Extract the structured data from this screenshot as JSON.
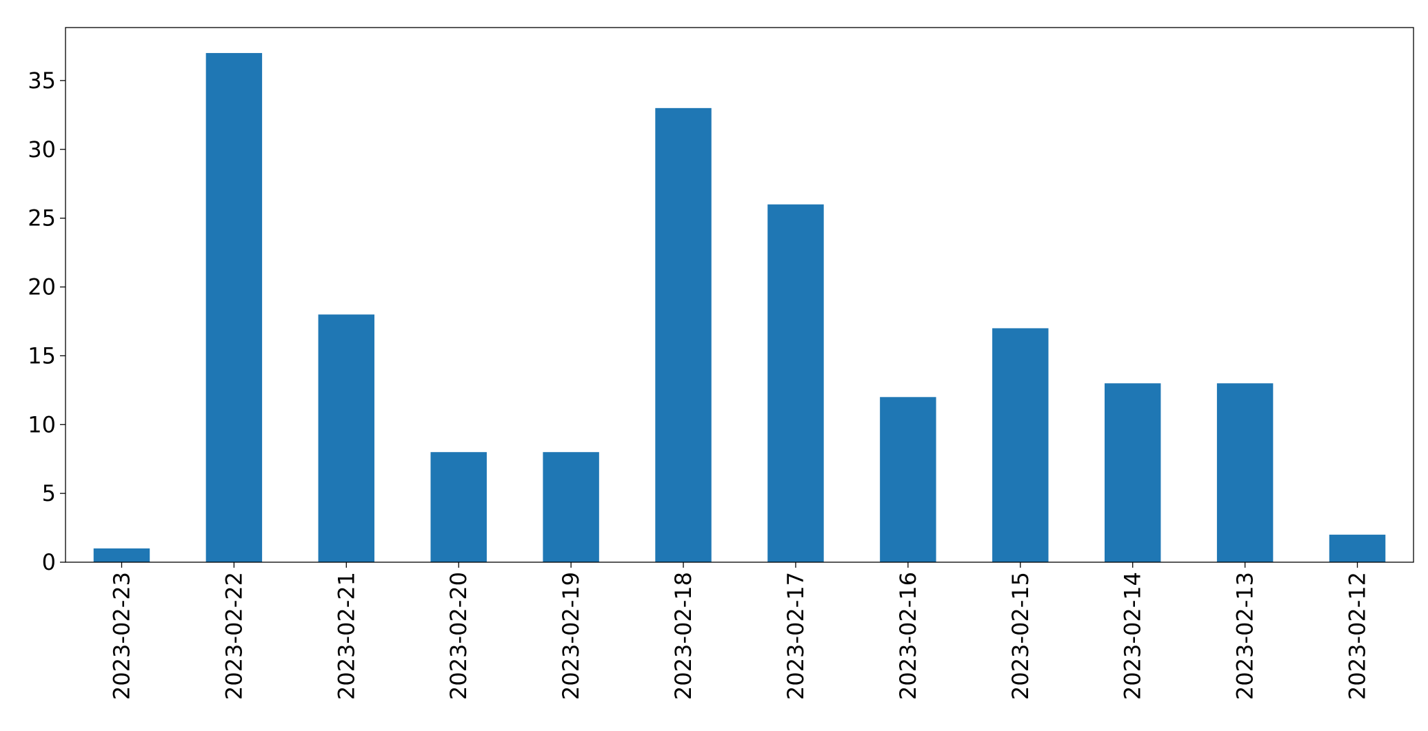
{
  "chart_data": {
    "type": "bar",
    "categories": [
      "2023-02-23",
      "2023-02-22",
      "2023-02-21",
      "2023-02-20",
      "2023-02-19",
      "2023-02-18",
      "2023-02-17",
      "2023-02-16",
      "2023-02-15",
      "2023-02-14",
      "2023-02-13",
      "2023-02-12"
    ],
    "values": [
      1,
      37,
      18,
      8,
      8,
      33,
      26,
      12,
      17,
      13,
      13,
      2
    ],
    "title": "",
    "xlabel": "",
    "ylabel": "",
    "ylim": [
      0,
      38.85
    ],
    "yticks": [
      0,
      5,
      10,
      15,
      20,
      25,
      30,
      35
    ],
    "bar_color": "#1f77b4",
    "grid": false,
    "legend": "none"
  }
}
